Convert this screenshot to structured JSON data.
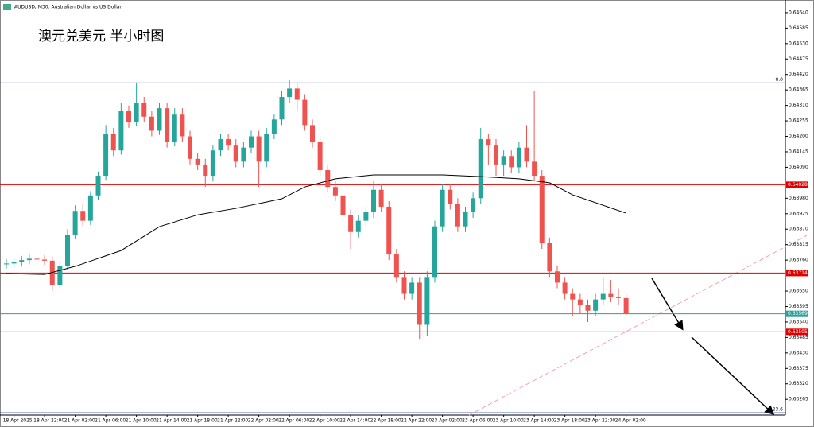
{
  "chart_data": {
    "type": "candlestick",
    "title": "AUDUSD, M30:  Australian Dollar vs US Dollar",
    "annotation": "澳元兑美元 半小时图",
    "categories": [
      null,
      "18 Apr 2025",
      null,
      null,
      null,
      "18 Apr 22:00",
      null,
      null,
      null,
      "21 Apr 02:00",
      null,
      null,
      null,
      "21 Apr 06:00",
      null,
      null,
      null,
      "21 Apr 10:00",
      null,
      null,
      null,
      "21 Apr 14:00",
      null,
      null,
      null,
      "21 Apr 18:00",
      null,
      null,
      null,
      "21 Apr 22:00",
      null,
      null,
      null,
      "22 Apr 02:00",
      null,
      null,
      null,
      "22 Apr 06:00",
      null,
      null,
      null,
      "22 Apr 10:00",
      null,
      null,
      null,
      "22 Apr 14:00",
      null,
      null,
      null,
      "22 Apr 18:00",
      null,
      null,
      null,
      "22 Apr 22:00",
      null,
      null,
      null,
      "23 Apr 02:00",
      null,
      null,
      null,
      "23 Apr 06:00",
      null,
      null,
      null,
      "23 Apr 10:00",
      null,
      null,
      null,
      "23 Apr 14:00",
      null,
      null,
      null,
      "23 Apr 18:00",
      null,
      null,
      null,
      "23 Apr 22:00",
      null,
      null,
      null,
      "24 Apr 02:00"
    ],
    "open": [
      0.63745,
      0.63748,
      0.63752,
      0.6376,
      0.63765,
      0.63762,
      0.63758,
      0.63672,
      0.6374,
      0.6385,
      0.63935,
      0.639,
      0.6399,
      0.6406,
      0.6421,
      0.6415,
      0.6429,
      0.6425,
      0.6432,
      0.6427,
      0.6422,
      0.643,
      0.6418,
      0.6428,
      0.642,
      0.6412,
      0.641,
      0.6406,
      0.6415,
      0.6419,
      0.6417,
      0.6411,
      0.6416,
      0.642,
      0.6411,
      0.6421,
      0.6426,
      0.6434,
      0.6437,
      0.6433,
      0.6424,
      0.6418,
      0.6408,
      0.6402,
      0.6399,
      0.6392,
      0.6386,
      0.639,
      0.6393,
      0.6401,
      0.6395,
      0.6378,
      0.637,
      0.6364,
      0.6368,
      0.6353,
      0.637,
      0.6388,
      0.6401,
      0.6396,
      0.6388,
      0.6393,
      0.6398,
      0.6419,
      0.6417,
      0.641,
      0.6413,
      0.6409,
      0.6416,
      0.6411,
      0.6406,
      0.6382,
      0.6372,
      0.6368,
      0.6364,
      0.6362,
      0.636,
      0.6358,
      0.6362,
      0.6364,
      0.6363,
      0.63625
    ],
    "high": [
      0.63763,
      0.63767,
      0.63775,
      0.6378,
      0.6378,
      0.63777,
      0.63773,
      0.63755,
      0.6387,
      0.63955,
      0.6396,
      0.64005,
      0.64075,
      0.6424,
      0.6423,
      0.6432,
      0.6431,
      0.6439,
      0.6434,
      0.6429,
      0.6432,
      0.6432,
      0.643,
      0.643,
      0.6422,
      0.6414,
      0.6412,
      0.6417,
      0.6421,
      0.6421,
      0.6419,
      0.6418,
      0.6422,
      0.6422,
      0.6423,
      0.6428,
      0.6436,
      0.644,
      0.6439,
      0.6435,
      0.6426,
      0.642,
      0.641,
      0.6404,
      0.6401,
      0.6394,
      0.6392,
      0.6395,
      0.6404,
      0.6403,
      0.6397,
      0.638,
      0.6372,
      0.637,
      0.637,
      0.6372,
      0.639,
      0.6403,
      0.6403,
      0.6398,
      0.6395,
      0.64,
      0.6423,
      0.6421,
      0.6419,
      0.6415,
      0.6415,
      0.6418,
      0.6424,
      0.6436,
      0.6408,
      0.6384,
      0.6374,
      0.637,
      0.6366,
      0.6364,
      0.6362,
      0.6364,
      0.637,
      0.6369,
      0.6366,
      0.6364
    ],
    "low": [
      0.6373,
      0.63733,
      0.63737,
      0.63745,
      0.63747,
      0.63743,
      0.6365,
      0.63657,
      0.63725,
      0.63835,
      0.6388,
      0.63885,
      0.63975,
      0.64045,
      0.6413,
      0.64135,
      0.6423,
      0.64235,
      0.6425,
      0.642,
      0.64205,
      0.6416,
      0.64165,
      0.6418,
      0.641,
      0.6408,
      0.6402,
      0.6404,
      0.6413,
      0.6415,
      0.6409,
      0.6409,
      0.6414,
      0.6402,
      0.6409,
      0.6419,
      0.6424,
      0.6432,
      0.6429,
      0.6422,
      0.6416,
      0.6406,
      0.64,
      0.6397,
      0.639,
      0.638,
      0.6384,
      0.6388,
      0.6391,
      0.6393,
      0.6376,
      0.6368,
      0.6362,
      0.6362,
      0.6348,
      0.6349,
      0.6368,
      0.6386,
      0.6394,
      0.6386,
      0.6386,
      0.6391,
      0.6396,
      0.641,
      0.6406,
      0.6406,
      0.6407,
      0.6407,
      0.6409,
      0.6404,
      0.638,
      0.637,
      0.6366,
      0.6362,
      0.6356,
      0.6357,
      0.6354,
      0.6356,
      0.636,
      0.6361,
      0.636,
      0.6356
    ],
    "close": [
      0.63748,
      0.63752,
      0.6376,
      0.63765,
      0.63762,
      0.63758,
      0.63672,
      0.6374,
      0.6385,
      0.63935,
      0.639,
      0.6399,
      0.6406,
      0.6421,
      0.6415,
      0.6429,
      0.6425,
      0.6432,
      0.6427,
      0.6422,
      0.643,
      0.6418,
      0.6428,
      0.642,
      0.6412,
      0.641,
      0.6406,
      0.6415,
      0.6419,
      0.6417,
      0.6411,
      0.6416,
      0.642,
      0.6411,
      0.6421,
      0.6426,
      0.6434,
      0.6437,
      0.6433,
      0.6424,
      0.6418,
      0.6408,
      0.6402,
      0.6399,
      0.6392,
      0.6386,
      0.639,
      0.6393,
      0.6401,
      0.6395,
      0.6378,
      0.637,
      0.6364,
      0.6368,
      0.6353,
      0.637,
      0.6388,
      0.6401,
      0.6396,
      0.6388,
      0.6393,
      0.6398,
      0.6419,
      0.6417,
      0.641,
      0.6413,
      0.6409,
      0.6416,
      0.6411,
      0.6406,
      0.6382,
      0.6372,
      0.6368,
      0.6364,
      0.6362,
      0.636,
      0.6358,
      0.6362,
      0.6364,
      0.6363,
      0.63625,
      0.6357
    ],
    "up_color": "#26a69a",
    "down_color": "#ef5350",
    "ma": {
      "color": "#000000",
      "x": [
        0,
        5,
        9,
        15,
        20,
        25,
        30,
        36,
        39,
        43,
        48,
        51,
        57,
        62,
        67,
        71,
        74,
        78,
        81
      ],
      "values": [
        0.63712,
        0.63709,
        0.63738,
        0.63794,
        0.63879,
        0.63921,
        0.63944,
        0.63978,
        0.6402,
        0.64049,
        0.64063,
        0.64063,
        0.64063,
        0.64057,
        0.64049,
        0.64035,
        0.63992,
        0.63955,
        0.63927
      ]
    },
    "levels": [
      {
        "value": 0.64028,
        "color": "#e00000"
      },
      {
        "value": 0.63714,
        "color": "#e00000"
      },
      {
        "value": 0.63569,
        "color": "#2aa198"
      },
      {
        "value": 0.63505,
        "color": "#e00000"
      }
    ],
    "fib": [
      {
        "value": 0.6439,
        "label": "0.0"
      },
      {
        "value": 0.63217,
        "label": "23.6"
      }
    ],
    "fib_color": "#1f3fbf",
    "ylim": [
      0.63209,
      0.64685
    ],
    "yticks": [
      {
        "value": 0.6464,
        "label": "0.64640"
      },
      0.64585,
      {
        "value": 0.6453,
        "label": "0.64530"
      },
      0.64475,
      {
        "value": 0.6442,
        "label": "0.64420"
      },
      0.64365,
      {
        "value": 0.6431,
        "label": "0.64310"
      },
      0.64255,
      {
        "value": 0.642,
        "label": "0.64200"
      },
      0.64145,
      {
        "value": 0.6409,
        "label": "0.64090"
      },
      {
        "value": 0.6398,
        "label": "0.63980"
      },
      0.63925,
      {
        "value": 0.6387,
        "label": "0.63870"
      },
      0.63815,
      {
        "value": 0.6376,
        "label": "0.63760"
      },
      {
        "value": 0.6365,
        "label": "0.63650"
      },
      0.63595,
      {
        "value": 0.6354,
        "label": "0.63540"
      },
      0.63485,
      {
        "value": 0.6343,
        "label": "0.63430"
      },
      0.63375,
      {
        "value": 0.6332,
        "label": "0.63320"
      },
      0.63265
    ]
  }
}
